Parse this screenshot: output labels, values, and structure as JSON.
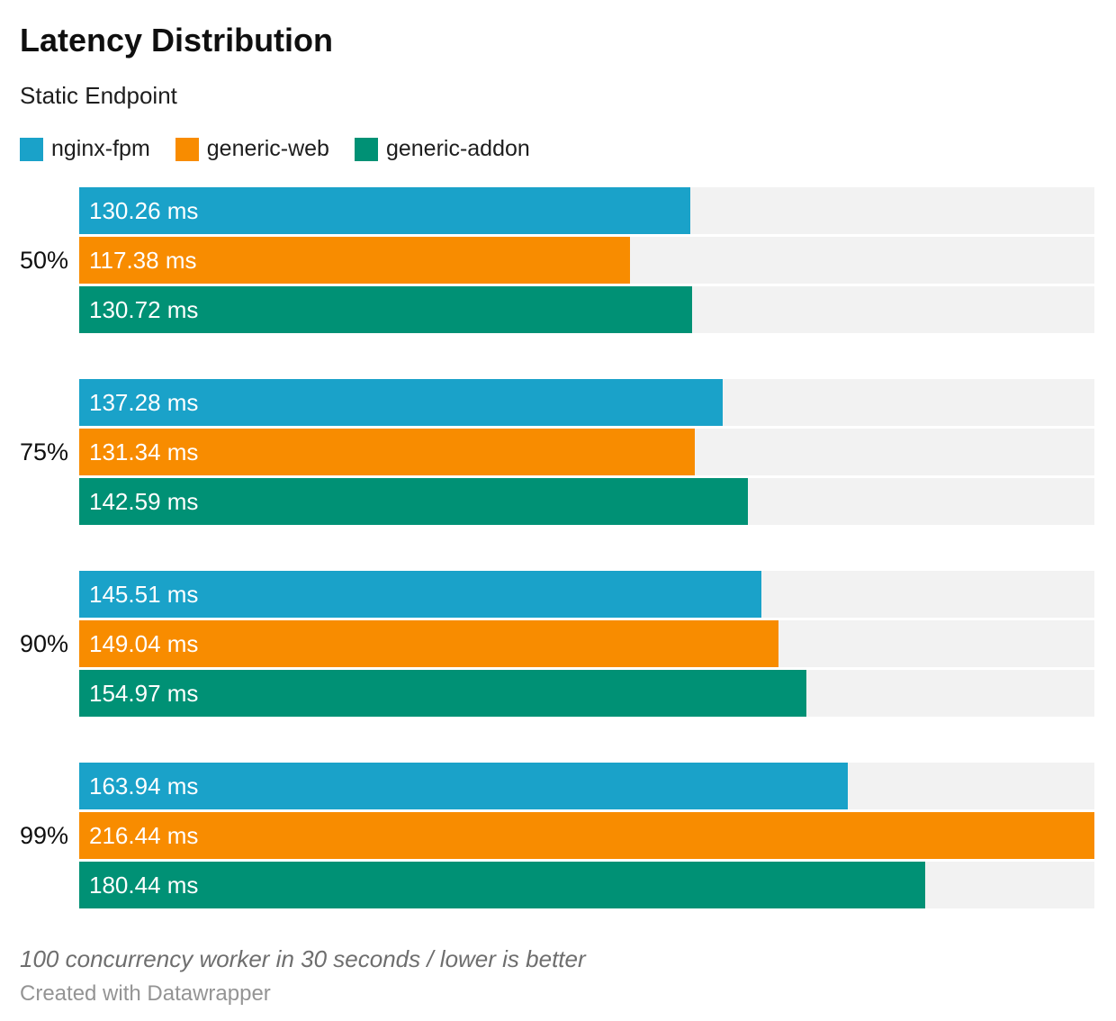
{
  "header": {
    "title": "Latency Distribution",
    "subtitle": "Static Endpoint"
  },
  "chart_data": {
    "type": "bar",
    "orientation": "horizontal",
    "title": "Latency Distribution",
    "subtitle": "Static Endpoint",
    "categories": [
      "50%",
      "75%",
      "90%",
      "99%"
    ],
    "series": [
      {
        "name": "nginx-fpm",
        "color": "#1aa2c9",
        "values": [
          130.26,
          137.28,
          145.51,
          163.94
        ]
      },
      {
        "name": "generic-web",
        "color": "#f88c00",
        "values": [
          117.38,
          131.34,
          149.04,
          216.44
        ]
      },
      {
        "name": "generic-addon",
        "color": "#009175",
        "values": [
          130.72,
          142.59,
          154.97,
          180.44
        ]
      }
    ],
    "value_suffix": " ms",
    "value_decimals": 2,
    "xlim": [
      0,
      216.44
    ],
    "grid": false,
    "legend_position": "top",
    "track_color": "#f2f2f2",
    "label_color_on_bar": "#ffffff"
  },
  "footer": {
    "note": "100 concurrency worker in 30 seconds / lower is better",
    "attribution": "Created with Datawrapper"
  }
}
